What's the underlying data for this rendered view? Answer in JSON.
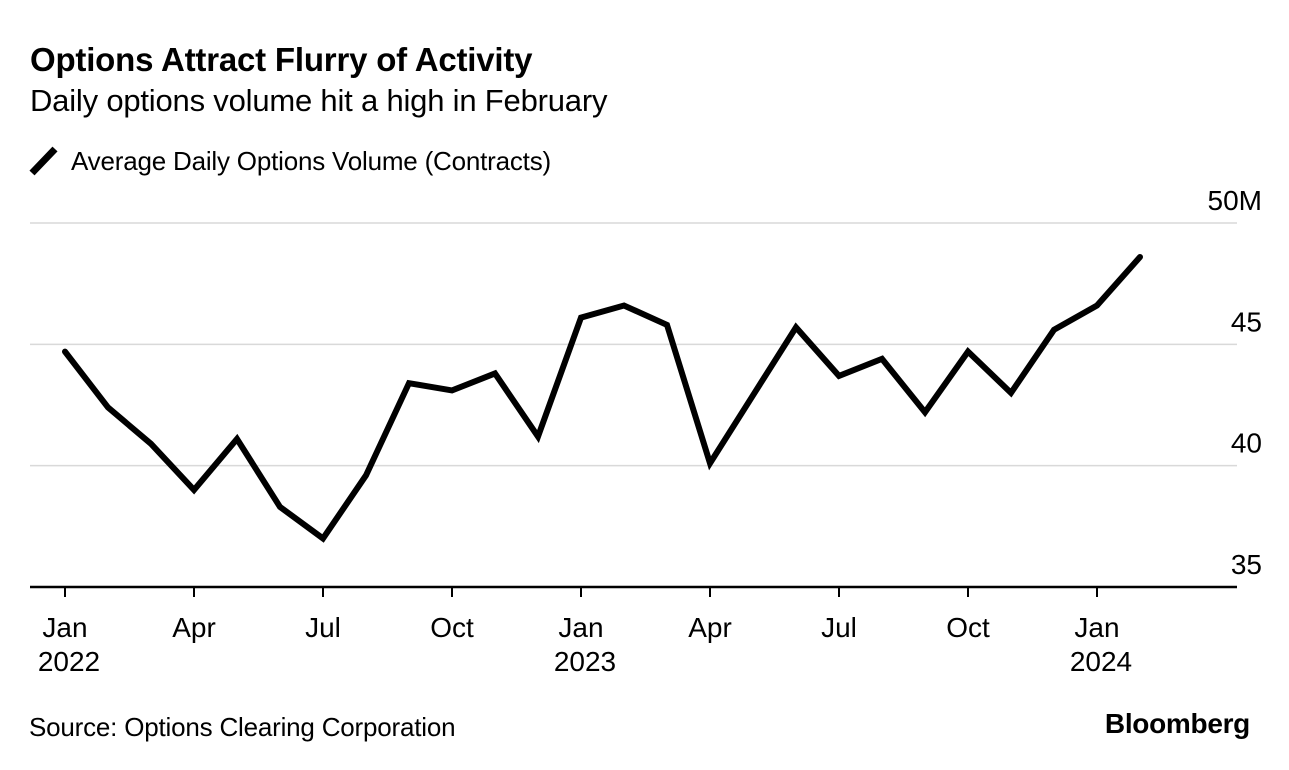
{
  "header": {
    "title": "Options Attract Flurry of Activity",
    "subtitle": "Daily options volume hit a high in February"
  },
  "legend": {
    "series_label": "Average Daily Options Volume (Contracts)",
    "mark_icon": "diagonal-line-stroke"
  },
  "footer": {
    "source": "Source: Options Clearing Corporation",
    "brand": "Bloomberg"
  },
  "chart_data": {
    "type": "line",
    "title": "Options Attract Flurry of Activity",
    "subtitle": "Daily options volume hit a high in February",
    "x": [
      "Jan 2022",
      "Feb 2022",
      "Mar 2022",
      "Apr 2022",
      "May 2022",
      "Jun 2022",
      "Jul 2022",
      "Aug 2022",
      "Sep 2022",
      "Oct 2022",
      "Nov 2022",
      "Dec 2022",
      "Jan 2023",
      "Feb 2023",
      "Mar 2023",
      "Apr 2023",
      "May 2023",
      "Jun 2023",
      "Jul 2023",
      "Aug 2023",
      "Sep 2023",
      "Oct 2023",
      "Nov 2023",
      "Dec 2023",
      "Jan 2024",
      "Feb 2024"
    ],
    "series": [
      {
        "name": "Average Daily Options Volume (Contracts)",
        "unit": "millions of contracts",
        "color": "#000000",
        "values": [
          44.7,
          42.4,
          40.9,
          39.0,
          41.1,
          38.3,
          37.0,
          39.6,
          43.4,
          43.1,
          43.8,
          41.2,
          46.1,
          46.6,
          45.8,
          40.1,
          42.9,
          45.7,
          43.7,
          44.4,
          42.2,
          44.7,
          43.0,
          45.6,
          46.6,
          48.6
        ]
      }
    ],
    "ylim": [
      35,
      50
    ],
    "y_ticks": [
      {
        "value": 35,
        "label": "35"
      },
      {
        "value": 40,
        "label": "40"
      },
      {
        "value": 45,
        "label": "45"
      },
      {
        "value": 50,
        "label": "50M"
      }
    ],
    "x_ticks": [
      {
        "index": 0,
        "month": "Jan",
        "year": "2022"
      },
      {
        "index": 3,
        "month": "Apr"
      },
      {
        "index": 6,
        "month": "Jul"
      },
      {
        "index": 9,
        "month": "Oct"
      },
      {
        "index": 12,
        "month": "Jan",
        "year": "2023"
      },
      {
        "index": 15,
        "month": "Apr"
      },
      {
        "index": 18,
        "month": "Jul"
      },
      {
        "index": 21,
        "month": "Oct"
      },
      {
        "index": 24,
        "month": "Jan",
        "year": "2024"
      }
    ],
    "grid": "horizontal",
    "legend_position": "top-left",
    "colors": {
      "line": "#000000",
      "grid": "#d9d9d9",
      "axis": "#000000",
      "text": "#000000",
      "background": "#ffffff"
    }
  }
}
